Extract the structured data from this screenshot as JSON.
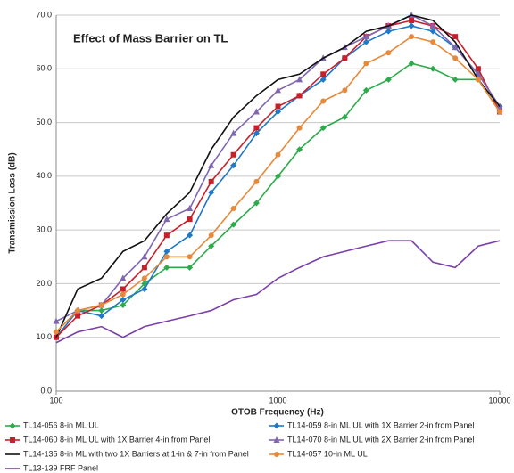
{
  "chart_data": {
    "type": "line",
    "title": "Effect of Mass Barrier on TL",
    "x_label": "OTOB Frequency (Hz)",
    "y_label": "Transmission Loss (dB)",
    "x": [
      100,
      125,
      160,
      200,
      250,
      315,
      400,
      500,
      630,
      800,
      1000,
      1250,
      1600,
      2000,
      2500,
      3150,
      4000,
      5000,
      6300,
      8000,
      10000
    ],
    "xscale": "log",
    "xlim": [
      100,
      10000
    ],
    "xticks": [
      100,
      1000,
      10000
    ],
    "ylim": [
      0,
      70
    ],
    "yticks": [
      {
        "value": 0,
        "label": "0.0"
      },
      {
        "value": 10,
        "label": "10.0"
      },
      {
        "value": 20,
        "label": "20.0"
      },
      {
        "value": 30,
        "label": "30.0"
      },
      {
        "value": 40,
        "label": "40.0"
      },
      {
        "value": 50,
        "label": "50.0"
      },
      {
        "value": 60,
        "label": "60.0"
      },
      {
        "value": 70,
        "label": "70.0"
      }
    ],
    "grid": true,
    "legend": "bottom",
    "series": [
      {
        "name": "TL14-056 8-in ML UL",
        "color": "#2bab4a",
        "marker": "diamond",
        "values": [
          11,
          15,
          15,
          16,
          20,
          23,
          23,
          27,
          31,
          35,
          40,
          45,
          49,
          51,
          56,
          58,
          61,
          60,
          58,
          58,
          52
        ]
      },
      {
        "name": "TL14-059 8-in ML UL with 1X Barrier 2-in from Panel",
        "color": "#1f78c8",
        "marker": "diamond",
        "values": [
          10,
          15,
          14,
          17,
          19,
          26,
          29,
          37,
          42,
          48,
          52,
          55,
          58,
          62,
          65,
          67,
          68,
          67,
          64,
          59,
          53
        ]
      },
      {
        "name": "TL14-060 8-in ML UL with 1X Barrier 4-in from Panel",
        "color": "#c8202a",
        "marker": "square",
        "values": [
          10,
          14,
          16,
          19,
          23,
          29,
          32,
          39,
          44,
          49,
          53,
          55,
          59,
          62,
          66,
          68,
          69,
          68,
          66,
          60,
          52
        ]
      },
      {
        "name": "TL14-070 8-in ML UL with 2X Barrier 2-in from Panel",
        "color": "#8066b0",
        "marker": "triangle",
        "values": [
          13,
          15,
          16,
          21,
          25,
          32,
          34,
          42,
          48,
          52,
          56,
          58,
          62,
          64,
          66,
          68,
          70,
          68,
          64,
          59,
          53
        ]
      },
      {
        "name": "TL14-135 8-in ML with two 1X Barriers at 1-in & 7-in from Panel",
        "color": "#111111",
        "marker": "none",
        "values": [
          10,
          19,
          21,
          26,
          28,
          33,
          37,
          45,
          51,
          55,
          58,
          59,
          62,
          64,
          67,
          68,
          70,
          69,
          65,
          58,
          53
        ]
      },
      {
        "name": "TL14-057 10-in ML UL",
        "color": "#e8893a",
        "marker": "circle",
        "values": [
          11,
          15,
          16,
          18,
          21,
          25,
          25,
          29,
          34,
          39,
          44,
          49,
          54,
          56,
          61,
          63,
          66,
          65,
          62,
          58,
          52
        ]
      },
      {
        "name": "TL13-139 FRF Panel",
        "color": "#7a3fa8",
        "marker": "none",
        "values": [
          9,
          11,
          12,
          10,
          12,
          13,
          14,
          15,
          17,
          18,
          21,
          23,
          25,
          26,
          27,
          28,
          28,
          24,
          23,
          27,
          28
        ]
      }
    ]
  }
}
